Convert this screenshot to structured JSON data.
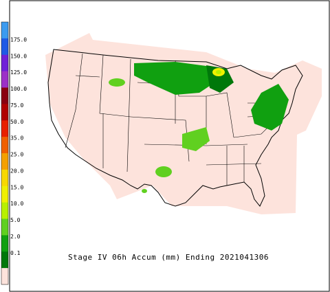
{
  "title": "Stage IV 06h Accum (mm) Ending 2021041306",
  "legend": {
    "labels": [
      "175.0",
      "150.0",
      "125.0",
      "100.0",
      "75.0",
      "50.0",
      "35.0",
      "25.0",
      "20.0",
      "15.0",
      "10.0",
      "5.0",
      "2.0",
      "0.1"
    ],
    "colors": [
      "#3c9bf0",
      "#1e5ae6",
      "#7020d8",
      "#9c30c8",
      "#8a0010",
      "#b00000",
      "#e82000",
      "#f06000",
      "#f4a000",
      "#f8d800",
      "#f0f000",
      "#b8f000",
      "#60d020",
      "#10a010",
      "#00780a",
      "#fde3dc"
    ]
  }
}
